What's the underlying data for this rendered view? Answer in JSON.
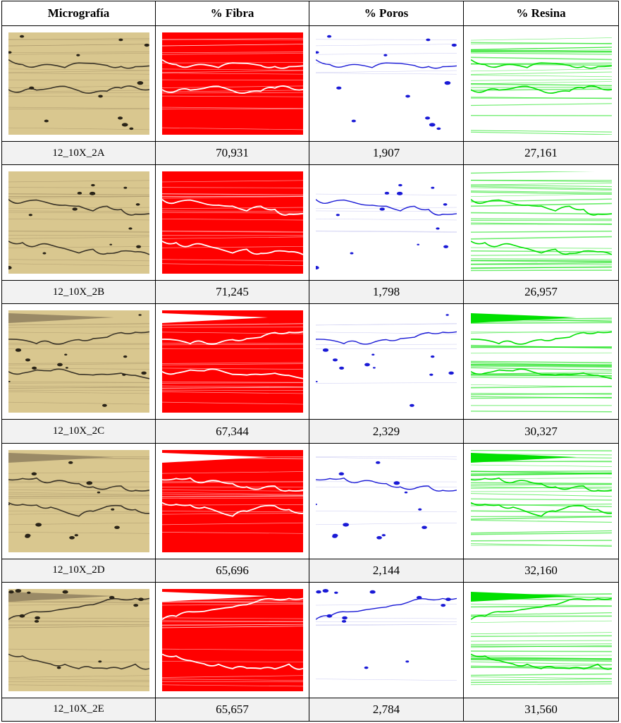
{
  "table": {
    "headers": [
      "Micrografía",
      "% Fibra",
      "% Poros",
      "% Resina"
    ],
    "rows": [
      {
        "id": "12_10X_2A",
        "fibra": "70,931",
        "poros": "1,907",
        "resina": "27,161"
      },
      {
        "id": "12_10X_2B",
        "fibra": "71,245",
        "poros": "1,798",
        "resina": "26,957"
      },
      {
        "id": "12_10X_2C",
        "fibra": "67,344",
        "poros": "2,329",
        "resina": "30,327"
      },
      {
        "id": "12_10X_2D",
        "fibra": "65,696",
        "poros": "2,144",
        "resina": "32,160"
      },
      {
        "id": "12_10X_2E",
        "fibra": "65,657",
        "poros": "2,784",
        "resina": "31,560"
      }
    ]
  },
  "image_colors": {
    "micrograph": "#d9c78f",
    "fibra": "#ff0000",
    "poros": "#1a1ad6",
    "resina": "#00e000"
  }
}
